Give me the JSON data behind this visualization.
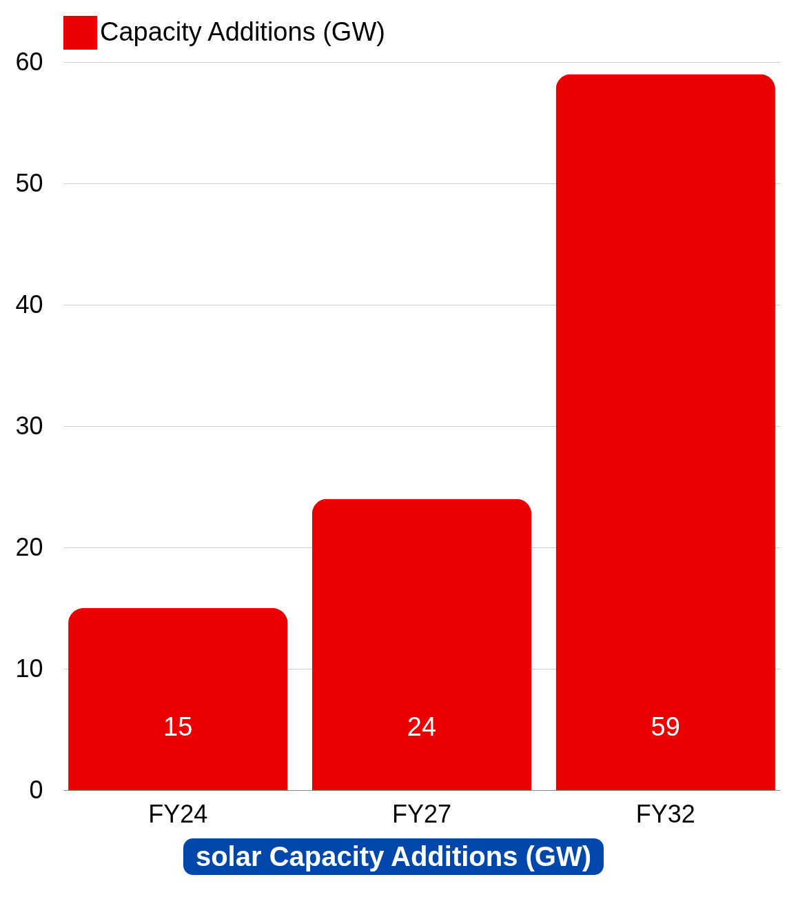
{
  "chart_data": {
    "type": "bar",
    "xlabel": "solar Capacity Additions (GW)",
    "categories": [
      "FY24",
      "FY27",
      "FY32"
    ],
    "series": [
      {
        "name": "Capacity Additions (GW)",
        "color": "#eb0000",
        "values": [
          15,
          24,
          59
        ]
      }
    ],
    "ylim": [
      0,
      60
    ],
    "yticks": [
      0,
      10,
      20,
      30,
      40,
      50,
      60
    ],
    "grid": "y",
    "legend": "top",
    "data_labels": true
  }
}
